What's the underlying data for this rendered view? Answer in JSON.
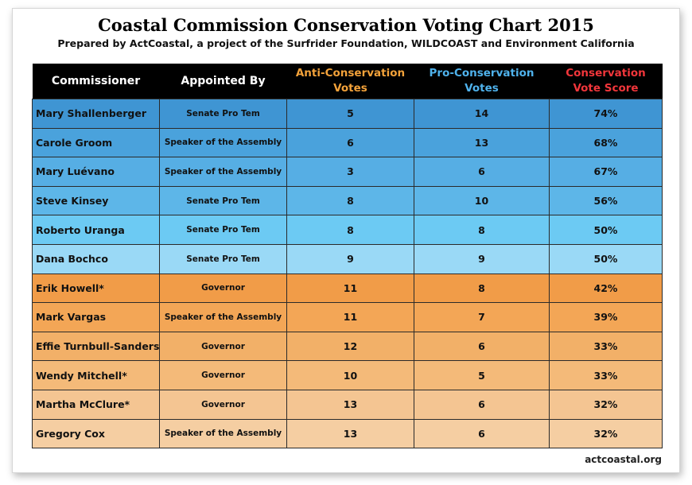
{
  "title": "Coastal Commission Conservation Voting Chart 2015",
  "subtitle": "Prepared by ActCoastal, a project of the Surfrider Foundation, WILDCOAST and Environment California",
  "footer": "actcoastal.org",
  "colors": {
    "anti_header": "#f3a23a",
    "pro_header": "#4fb2ec",
    "score_header": "#f2363b",
    "row_colors": [
      "#3f95d3",
      "#4aa2dc",
      "#56aee4",
      "#5db6e8",
      "#6ccaf3",
      "#9ad9f6",
      "#f19c48",
      "#f3a656",
      "#f2b068",
      "#f4ba79",
      "#f4c592",
      "#f5cea2"
    ]
  },
  "chart_data": {
    "type": "table",
    "title": "Coastal Commission Conservation Voting Chart 2015",
    "columns": [
      "Commissioner",
      "Appointed By",
      "Anti-Conservation Votes",
      "Pro-Conservation Votes",
      "Conservation Vote Score"
    ],
    "header_lines": [
      [
        "Commissioner"
      ],
      [
        "Appointed By"
      ],
      [
        "Anti-Conservation",
        "Votes"
      ],
      [
        "Pro-Conservation",
        "Votes"
      ],
      [
        "Conservation",
        "Vote Score"
      ]
    ],
    "rows": [
      [
        "Mary Shallenberger",
        "Senate Pro Tem",
        "5",
        "14",
        "74%"
      ],
      [
        "Carole Groom",
        "Speaker of the Assembly",
        "6",
        "13",
        "68%"
      ],
      [
        "Mary Luévano",
        "Speaker of the Assembly",
        "3",
        "6",
        "67%"
      ],
      [
        "Steve Kinsey",
        "Senate Pro Tem",
        "8",
        "10",
        "56%"
      ],
      [
        "Roberto Uranga",
        "Senate Pro Tem",
        "8",
        "8",
        "50%"
      ],
      [
        "Dana Bochco",
        "Senate Pro Tem",
        "9",
        "9",
        "50%"
      ],
      [
        "Erik Howell*",
        "Governor",
        "11",
        "8",
        "42%"
      ],
      [
        "Mark Vargas",
        "Speaker of the Assembly",
        "11",
        "7",
        "39%"
      ],
      [
        "Effie Turnbull-Sanders*",
        "Governor",
        "12",
        "6",
        "33%"
      ],
      [
        "Wendy Mitchell*",
        "Governor",
        "10",
        "5",
        "33%"
      ],
      [
        "Martha McClure*",
        "Governor",
        "13",
        "6",
        "32%"
      ],
      [
        "Gregory Cox",
        "Speaker of the Assembly",
        "13",
        "6",
        "32%"
      ]
    ]
  }
}
